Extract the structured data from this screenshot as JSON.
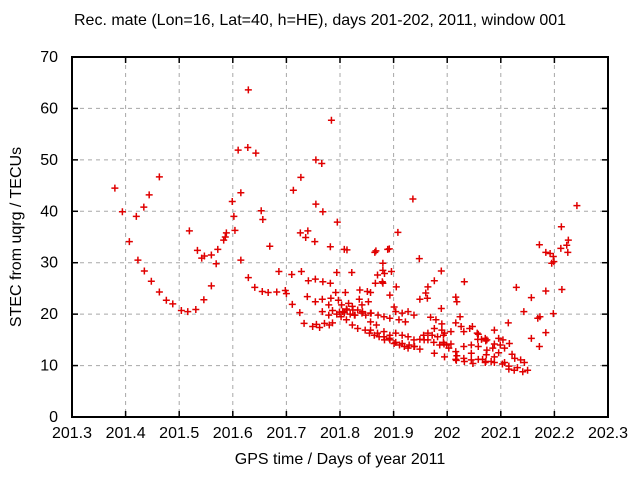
{
  "chart_data": {
    "type": "scatter",
    "title": "Rec. mate (Lon=16, Lat=40, h=HE), days 201-202, 2011, window 001",
    "xlabel": "GPS time / Days of year 2011",
    "ylabel": "STEC from uqrg / TECUs",
    "xlim": [
      201.3,
      202.3
    ],
    "ylim": [
      0,
      70
    ],
    "xticks": [
      201.3,
      201.4,
      201.5,
      201.6,
      201.7,
      201.8,
      201.9,
      202,
      202.1,
      202.2,
      202.3
    ],
    "xtick_labels": [
      "201.3",
      "201.4",
      "201.5",
      "201.6",
      "201.7",
      "201.8",
      "201.9",
      "202",
      "202.1",
      "202.2",
      "202.3"
    ],
    "yticks": [
      0,
      10,
      20,
      30,
      40,
      50,
      60,
      70
    ],
    "ytick_labels": [
      "0",
      "10",
      "20",
      "30",
      "40",
      "50",
      "60",
      "70"
    ],
    "grid": true,
    "legend": "none",
    "marker": "plus",
    "colors": {
      "marker": "#e00000",
      "grid": "#a8a8a8",
      "axis": "#000000",
      "background": "#ffffff"
    },
    "points": [
      [
        201.38,
        44.5
      ],
      [
        201.394,
        39.9
      ],
      [
        201.407,
        34.1
      ],
      [
        201.42,
        39.0
      ],
      [
        201.423,
        30.5
      ],
      [
        201.434,
        40.8
      ],
      [
        201.435,
        28.4
      ],
      [
        201.444,
        43.2
      ],
      [
        201.448,
        26.4
      ],
      [
        201.463,
        46.7
      ],
      [
        201.463,
        24.3
      ],
      [
        201.476,
        22.7
      ],
      [
        201.488,
        22.0
      ],
      [
        201.504,
        20.7
      ],
      [
        201.516,
        20.5
      ],
      [
        201.519,
        36.2
      ],
      [
        201.531,
        20.9
      ],
      [
        201.534,
        32.4
      ],
      [
        201.542,
        30.9
      ],
      [
        201.546,
        22.8
      ],
      [
        201.547,
        31.3
      ],
      [
        201.56,
        31.5
      ],
      [
        201.56,
        25.5
      ],
      [
        201.569,
        29.8
      ],
      [
        201.572,
        32.6
      ],
      [
        201.583,
        34.4
      ],
      [
        201.586,
        35.0
      ],
      [
        201.588,
        35.8
      ],
      [
        201.599,
        41.9
      ],
      [
        201.602,
        39.0
      ],
      [
        201.604,
        36.3
      ],
      [
        201.61,
        51.9
      ],
      [
        201.615,
        43.6
      ],
      [
        201.615,
        30.5
      ],
      [
        201.628,
        52.4
      ],
      [
        201.629,
        63.6
      ],
      [
        201.629,
        27.1
      ],
      [
        201.641,
        25.2
      ],
      [
        201.643,
        51.3
      ],
      [
        201.653,
        40.1
      ],
      [
        201.655,
        24.4
      ],
      [
        201.656,
        38.4
      ],
      [
        201.666,
        24.2
      ],
      [
        201.669,
        33.2
      ],
      [
        201.682,
        24.3
      ],
      [
        201.686,
        28.3
      ],
      [
        201.698,
        24.6
      ],
      [
        201.7,
        24.0
      ],
      [
        201.71,
        27.7
      ],
      [
        201.711,
        21.9
      ],
      [
        201.713,
        44.1
      ],
      [
        201.725,
        20.3
      ],
      [
        201.726,
        35.8
      ],
      [
        201.727,
        46.6
      ],
      [
        201.728,
        28.3
      ],
      [
        201.733,
        18.2
      ],
      [
        201.736,
        34.9
      ],
      [
        201.739,
        23.4
      ],
      [
        201.74,
        36.2
      ],
      [
        201.741,
        26.5
      ],
      [
        201.749,
        17.6
      ],
      [
        201.753,
        34.1
      ],
      [
        201.754,
        26.8
      ],
      [
        201.754,
        22.4
      ],
      [
        201.755,
        50.0
      ],
      [
        201.755,
        41.4
      ],
      [
        201.756,
        18.0
      ],
      [
        201.762,
        17.4
      ],
      [
        201.766,
        49.3
      ],
      [
        201.767,
        22.9
      ],
      [
        201.767,
        20.5
      ],
      [
        201.768,
        39.9
      ],
      [
        201.768,
        26.3
      ],
      [
        201.771,
        18.2
      ],
      [
        201.779,
        21.8
      ],
      [
        201.779,
        19.8
      ],
      [
        201.78,
        17.9
      ],
      [
        201.782,
        33.1
      ],
      [
        201.782,
        26.0
      ],
      [
        201.783,
        23.1
      ],
      [
        201.784,
        57.7
      ],
      [
        201.786,
        18.3
      ],
      [
        201.786,
        20.7
      ],
      [
        201.792,
        24.2
      ],
      [
        201.794,
        28.1
      ],
      [
        201.794,
        20.0
      ],
      [
        201.795,
        37.9
      ],
      [
        201.797,
        22.7
      ],
      [
        201.799,
        20.4
      ],
      [
        201.802,
        19.5
      ],
      [
        201.803,
        21.8
      ],
      [
        201.805,
        20.5
      ],
      [
        201.808,
        32.6
      ],
      [
        201.808,
        20.3
      ],
      [
        201.81,
        24.2
      ],
      [
        201.812,
        21.0
      ],
      [
        201.812,
        18.9
      ],
      [
        201.813,
        32.5
      ],
      [
        201.813,
        20.8
      ],
      [
        201.816,
        22.1
      ],
      [
        201.819,
        20.0
      ],
      [
        201.822,
        28.1
      ],
      [
        201.823,
        21.5
      ],
      [
        201.823,
        17.9
      ],
      [
        201.824,
        20.8
      ],
      [
        201.827,
        19.8
      ],
      [
        201.828,
        19.8
      ],
      [
        201.833,
        20.8
      ],
      [
        201.833,
        17.2
      ],
      [
        201.836,
        22.9
      ],
      [
        201.837,
        24.7
      ],
      [
        201.841,
        21.8
      ],
      [
        201.841,
        20.2
      ],
      [
        201.842,
        20.5
      ],
      [
        201.847,
        16.9
      ],
      [
        201.848,
        19.8
      ],
      [
        201.851,
        24.4
      ],
      [
        201.853,
        22.4
      ],
      [
        201.855,
        16.3
      ],
      [
        201.857,
        24.2
      ],
      [
        201.857,
        20.2
      ],
      [
        201.857,
        18.5
      ],
      [
        201.857,
        16.9
      ],
      [
        201.858,
        20.2
      ],
      [
        201.864,
        15.9
      ],
      [
        201.865,
        32.0
      ],
      [
        201.866,
        26.0
      ],
      [
        201.867,
        32.3
      ],
      [
        201.868,
        17.9
      ],
      [
        201.87,
        27.6
      ],
      [
        201.87,
        16.3
      ],
      [
        201.871,
        19.8
      ],
      [
        201.873,
        15.6
      ],
      [
        201.879,
        26.3
      ],
      [
        201.88,
        29.9
      ],
      [
        201.88,
        28.5
      ],
      [
        201.88,
        26.0
      ],
      [
        201.882,
        19.5
      ],
      [
        201.882,
        16.6
      ],
      [
        201.882,
        15.6
      ],
      [
        201.883,
        27.9
      ],
      [
        201.883,
        15.0
      ],
      [
        201.889,
        32.6
      ],
      [
        201.892,
        32.7
      ],
      [
        201.892,
        15.3
      ],
      [
        201.893,
        23.7
      ],
      [
        201.893,
        19.2
      ],
      [
        201.893,
        15.9
      ],
      [
        201.893,
        15.0
      ],
      [
        201.896,
        28.3
      ],
      [
        201.901,
        21.4
      ],
      [
        201.901,
        14.3
      ],
      [
        201.904,
        20.5
      ],
      [
        201.904,
        16.3
      ],
      [
        201.904,
        14.5
      ],
      [
        201.905,
        25.3
      ],
      [
        201.908,
        35.9
      ],
      [
        201.91,
        18.9
      ],
      [
        201.911,
        14.0
      ],
      [
        201.916,
        20.2
      ],
      [
        201.916,
        15.9
      ],
      [
        201.916,
        14.3
      ],
      [
        201.92,
        13.7
      ],
      [
        201.922,
        18.5
      ],
      [
        201.927,
        20.5
      ],
      [
        201.927,
        15.6
      ],
      [
        201.927,
        13.4
      ],
      [
        201.929,
        14.0
      ],
      [
        201.936,
        42.4
      ],
      [
        201.938,
        19.8
      ],
      [
        201.938,
        15.0
      ],
      [
        201.938,
        13.7
      ],
      [
        201.939,
        13.7
      ],
      [
        201.948,
        30.8
      ],
      [
        201.949,
        22.9
      ],
      [
        201.949,
        15.1
      ],
      [
        201.949,
        13.2
      ],
      [
        201.956,
        15.9
      ],
      [
        201.957,
        15.0
      ],
      [
        201.96,
        24.1
      ],
      [
        201.963,
        23.1
      ],
      [
        201.964,
        25.3
      ],
      [
        201.964,
        16.3
      ],
      [
        201.964,
        15.0
      ],
      [
        201.969,
        19.4
      ],
      [
        201.972,
        15.9
      ],
      [
        201.975,
        14.5
      ],
      [
        201.976,
        26.5
      ],
      [
        201.976,
        17.2
      ],
      [
        201.976,
        12.4
      ],
      [
        201.979,
        18.9
      ],
      [
        201.982,
        15.6
      ],
      [
        201.986,
        14.0
      ],
      [
        201.989,
        28.4
      ],
      [
        201.989,
        21.1
      ],
      [
        201.99,
        18.1
      ],
      [
        201.99,
        16.9
      ],
      [
        201.993,
        15.9
      ],
      [
        201.993,
        14.5
      ],
      [
        201.994,
        14.2
      ],
      [
        201.995,
        16.3
      ],
      [
        201.995,
        11.7
      ],
      [
        201.999,
        14.0
      ],
      [
        202.003,
        13.4
      ],
      [
        202.007,
        16.6
      ],
      [
        202.007,
        14.2
      ],
      [
        202.016,
        23.3
      ],
      [
        202.016,
        18.3
      ],
      [
        202.016,
        12.7
      ],
      [
        202.016,
        11.2
      ],
      [
        202.017,
        11.0
      ],
      [
        202.018,
        22.4
      ],
      [
        202.018,
        11.9
      ],
      [
        202.024,
        19.5
      ],
      [
        202.026,
        17.6
      ],
      [
        202.031,
        16.6
      ],
      [
        202.031,
        13.7
      ],
      [
        202.031,
        11.4
      ],
      [
        202.032,
        26.3
      ],
      [
        202.032,
        10.8
      ],
      [
        202.042,
        17.2
      ],
      [
        202.045,
        14.0
      ],
      [
        202.045,
        12.4
      ],
      [
        202.045,
        11.1
      ],
      [
        202.047,
        17.6
      ],
      [
        202.048,
        10.4
      ],
      [
        202.056,
        16.3
      ],
      [
        202.057,
        15.1
      ],
      [
        202.058,
        16.1
      ],
      [
        202.058,
        13.7
      ],
      [
        202.058,
        11.2
      ],
      [
        202.064,
        15.1
      ],
      [
        202.066,
        11.2
      ],
      [
        202.071,
        15.3
      ],
      [
        202.071,
        10.6
      ],
      [
        202.072,
        14.8
      ],
      [
        202.072,
        10.8
      ],
      [
        202.073,
        12.1
      ],
      [
        202.074,
        15.0
      ],
      [
        202.074,
        13.0
      ],
      [
        202.082,
        10.8
      ],
      [
        202.085,
        13.4
      ],
      [
        202.088,
        16.9
      ],
      [
        202.088,
        14.2
      ],
      [
        202.088,
        11.7
      ],
      [
        202.088,
        10.6
      ],
      [
        202.096,
        15.3
      ],
      [
        202.096,
        12.5
      ],
      [
        202.099,
        14.0
      ],
      [
        202.103,
        10.3
      ],
      [
        202.104,
        15.0
      ],
      [
        202.107,
        13.4
      ],
      [
        202.107,
        10.6
      ],
      [
        202.114,
        18.3
      ],
      [
        202.115,
        9.9
      ],
      [
        202.115,
        9.3
      ],
      [
        202.116,
        14.3
      ],
      [
        202.121,
        12.2
      ],
      [
        202.125,
        9.1
      ],
      [
        202.126,
        11.4
      ],
      [
        202.129,
        25.2
      ],
      [
        202.131,
        9.6
      ],
      [
        202.137,
        11.1
      ],
      [
        202.141,
        8.8
      ],
      [
        202.143,
        20.5
      ],
      [
        202.144,
        10.6
      ],
      [
        202.15,
        9.1
      ],
      [
        202.157,
        23.2
      ],
      [
        202.157,
        15.3
      ],
      [
        202.169,
        19.2
      ],
      [
        202.172,
        33.5
      ],
      [
        202.172,
        13.7
      ],
      [
        202.173,
        19.5
      ],
      [
        202.184,
        32.0
      ],
      [
        202.184,
        24.5
      ],
      [
        202.184,
        16.4
      ],
      [
        202.192,
        31.8
      ],
      [
        202.195,
        29.9
      ],
      [
        202.198,
        31.2
      ],
      [
        202.198,
        20.1
      ],
      [
        202.199,
        30.2
      ],
      [
        202.212,
        32.8
      ],
      [
        202.213,
        37.0
      ],
      [
        202.214,
        24.8
      ],
      [
        202.223,
        33.4
      ],
      [
        202.225,
        32.0
      ],
      [
        202.226,
        34.4
      ],
      [
        202.242,
        41.1
      ]
    ]
  }
}
